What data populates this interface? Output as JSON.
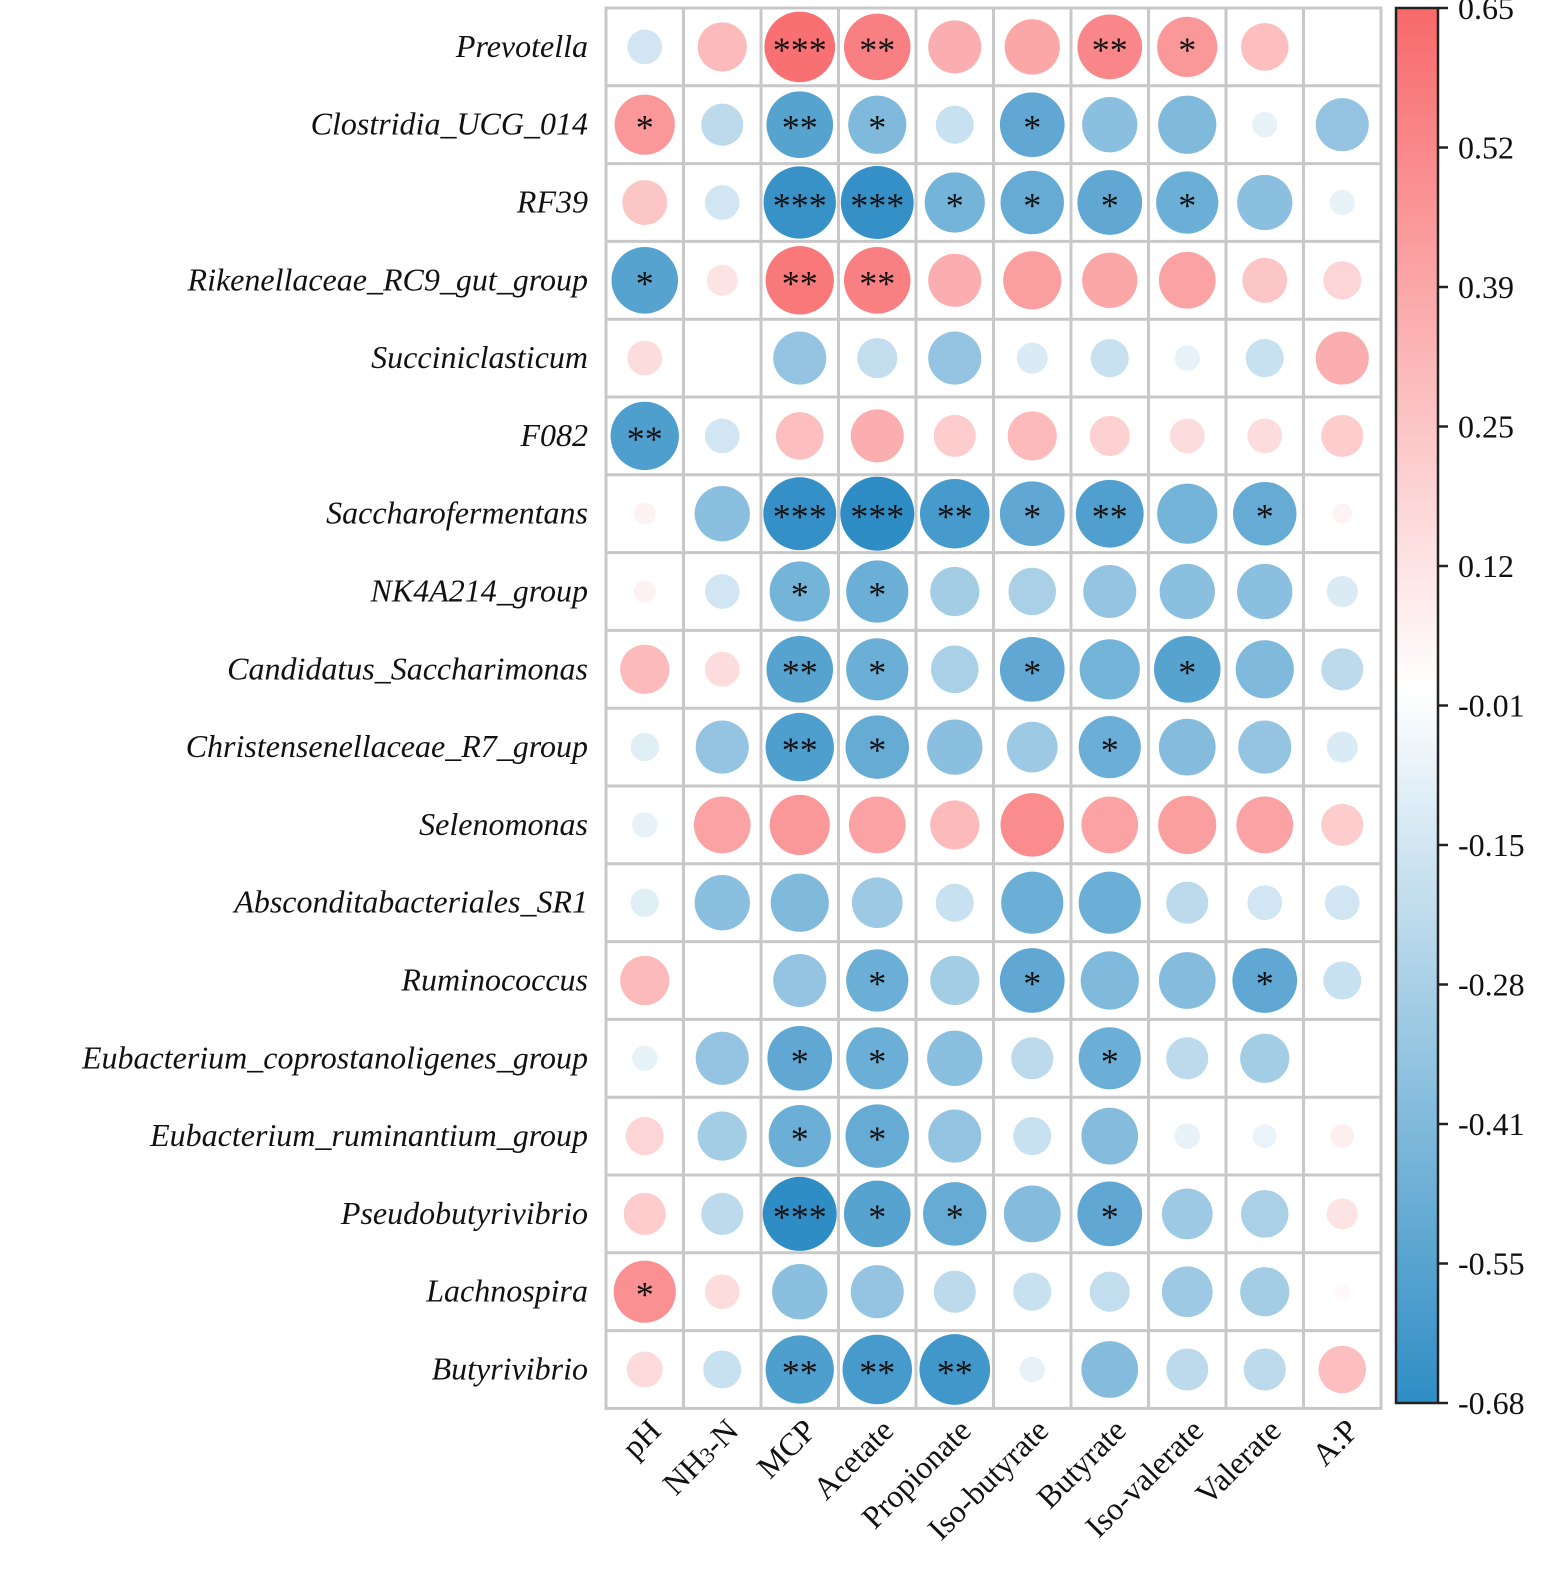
{
  "chart_data": {
    "type": "heatmap",
    "marker": "circle",
    "rows": [
      "Prevotella",
      "Clostridia_UCG_014",
      "RF39",
      "Rikenellaceae_RC9_gut_group",
      "Succiniclasticum",
      "F082",
      "Saccharofermentans",
      "NK4A214_group",
      "Candidatus_Saccharimonas",
      "Christensenellaceae_R7_group",
      "Selenomonas",
      "Absconditabacteriales_SR1",
      "Ruminococcus",
      "Eubacterium_coprostanoligenes_group",
      "Eubacterium_ruminantium_group",
      "Pseudobutyrivibrio",
      "Lachnospira",
      "Butyrivibrio"
    ],
    "columns": [
      "pH",
      "NH3-N",
      "MCP",
      "Acetate",
      "Propionate",
      "Iso-butyrate",
      "Butyrate",
      "Iso-valerate",
      "Valerate",
      "A:P"
    ],
    "values": [
      [
        -0.15,
        0.3,
        0.62,
        0.55,
        0.35,
        0.38,
        0.52,
        0.45,
        0.28,
        0.01
      ],
      [
        0.45,
        -0.22,
        -0.55,
        -0.42,
        -0.18,
        -0.52,
        -0.38,
        -0.42,
        -0.08,
        -0.35
      ],
      [
        0.25,
        -0.15,
        -0.65,
        -0.66,
        -0.45,
        -0.5,
        -0.52,
        -0.48,
        -0.38,
        -0.08
      ],
      [
        -0.55,
        0.12,
        0.58,
        0.55,
        0.35,
        0.42,
        0.38,
        0.4,
        0.25,
        0.18
      ],
      [
        0.15,
        0.0,
        -0.35,
        -0.2,
        -0.35,
        -0.12,
        -0.18,
        -0.08,
        -0.18,
        0.35
      ],
      [
        -0.58,
        -0.15,
        0.28,
        0.35,
        0.22,
        0.3,
        0.2,
        0.15,
        0.15,
        0.22
      ],
      [
        0.06,
        -0.38,
        -0.66,
        -0.68,
        -0.6,
        -0.52,
        -0.57,
        -0.45,
        -0.5,
        0.05
      ],
      [
        0.06,
        -0.15,
        -0.45,
        -0.48,
        -0.3,
        -0.28,
        -0.35,
        -0.38,
        -0.38,
        -0.12
      ],
      [
        0.3,
        0.15,
        -0.55,
        -0.48,
        -0.28,
        -0.52,
        -0.45,
        -0.55,
        -0.42,
        -0.22
      ],
      [
        -0.1,
        -0.35,
        -0.58,
        -0.5,
        -0.38,
        -0.32,
        -0.48,
        -0.4,
        -0.35,
        -0.12
      ],
      [
        -0.08,
        0.4,
        0.45,
        0.4,
        0.3,
        0.5,
        0.4,
        0.42,
        0.4,
        0.22
      ],
      [
        -0.1,
        -0.38,
        -0.42,
        -0.32,
        -0.18,
        -0.48,
        -0.48,
        -0.22,
        -0.15,
        -0.15
      ],
      [
        0.3,
        0.0,
        -0.35,
        -0.48,
        -0.3,
        -0.52,
        -0.42,
        -0.4,
        -0.52,
        -0.18
      ],
      [
        -0.08,
        -0.35,
        -0.52,
        -0.48,
        -0.38,
        -0.22,
        -0.48,
        -0.22,
        -0.3,
        0.0
      ],
      [
        0.18,
        -0.3,
        -0.48,
        -0.5,
        -0.35,
        -0.18,
        -0.4,
        -0.08,
        -0.07,
        0.07
      ],
      [
        0.22,
        -0.22,
        -0.68,
        -0.55,
        -0.5,
        -0.4,
        -0.52,
        -0.32,
        -0.28,
        0.12
      ],
      [
        0.48,
        0.15,
        -0.38,
        -0.35,
        -0.22,
        -0.18,
        -0.2,
        -0.32,
        -0.3,
        0.03
      ],
      [
        0.16,
        -0.18,
        -0.58,
        -0.6,
        -0.62,
        -0.08,
        -0.4,
        -0.22,
        -0.22,
        0.28
      ]
    ],
    "significance": [
      [
        "",
        "",
        "***",
        "**",
        "",
        "",
        "**",
        "*",
        "",
        ""
      ],
      [
        "*",
        "",
        "**",
        "*",
        "",
        "*",
        "",
        "",
        "",
        ""
      ],
      [
        "",
        "",
        "***",
        "***",
        "*",
        "*",
        "*",
        "*",
        "",
        ""
      ],
      [
        "*",
        "",
        "**",
        "**",
        "",
        "",
        "",
        "",
        "",
        ""
      ],
      [
        "",
        "",
        "",
        "",
        "",
        "",
        "",
        "",
        "",
        ""
      ],
      [
        "**",
        "",
        "",
        "",
        "",
        "",
        "",
        "",
        "",
        ""
      ],
      [
        "",
        "",
        "***",
        "***",
        "**",
        "*",
        "**",
        "",
        "*",
        ""
      ],
      [
        "",
        "",
        "*",
        "*",
        "",
        "",
        "",
        "",
        "",
        ""
      ],
      [
        "",
        "",
        "**",
        "*",
        "",
        "*",
        "",
        "*",
        "",
        ""
      ],
      [
        "",
        "",
        "**",
        "*",
        "",
        "",
        "*",
        "",
        "",
        ""
      ],
      [
        "",
        "",
        "",
        "",
        "",
        "",
        "",
        "",
        "",
        ""
      ],
      [
        "",
        "",
        "",
        "",
        "",
        "",
        "",
        "",
        "",
        ""
      ],
      [
        "",
        "",
        "",
        "*",
        "",
        "*",
        "",
        "",
        "*",
        ""
      ],
      [
        "",
        "",
        "*",
        "*",
        "",
        "",
        "*",
        "",
        "",
        ""
      ],
      [
        "",
        "",
        "*",
        "*",
        "",
        "",
        "",
        "",
        "",
        ""
      ],
      [
        "",
        "",
        "***",
        "*",
        "*",
        "",
        "*",
        "",
        "",
        ""
      ],
      [
        "*",
        "",
        "",
        "",
        "",
        "",
        "",
        "",
        "",
        ""
      ],
      [
        "",
        "",
        "**",
        "**",
        "**",
        "",
        "",
        "",
        "",
        ""
      ]
    ],
    "colorbar": {
      "range": [
        -0.68,
        0.65
      ],
      "ticks": [
        "0.65",
        "0.52",
        "0.39",
        "0.25",
        "0.12",
        "-0.01",
        "-0.15",
        "-0.28",
        "-0.41",
        "-0.55",
        "-0.68"
      ]
    },
    "colors": {
      "negative": "#2f8dc5",
      "neutral": "#ffffff",
      "positive": "#f8696b"
    }
  }
}
